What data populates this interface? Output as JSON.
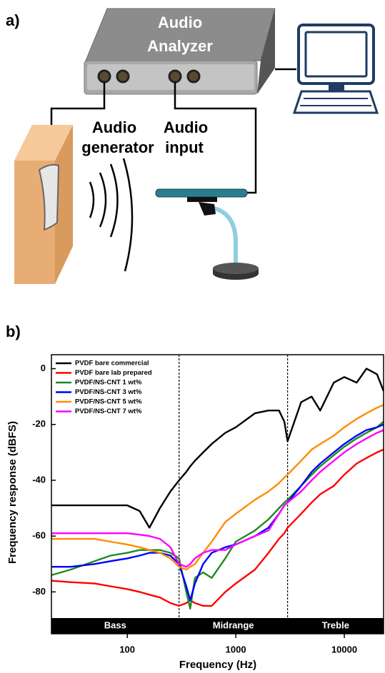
{
  "diagram": {
    "panel_label": "a)",
    "analyzer": [
      "Audio",
      "Analyzer"
    ],
    "generator": [
      "Audio",
      "generator"
    ],
    "input": [
      "Audio",
      "input"
    ]
  },
  "chart_data": {
    "type": "line",
    "panel_label": "b)",
    "x_label": "Frequency (Hz)",
    "y_label": "Frequency response (dBFS)",
    "log_x": true,
    "xlim": [
      20,
      23000
    ],
    "ylim": [
      -95,
      5
    ],
    "xticks": [
      100,
      1000,
      10000
    ],
    "yticks": [
      0,
      -20,
      -40,
      -60,
      -80
    ],
    "reference_lines": [
      300,
      3000
    ],
    "regions": [
      "Bass",
      "Midrange",
      "Treble"
    ],
    "legend": "top-left",
    "x": [
      20,
      30,
      50,
      70,
      100,
      130,
      160,
      200,
      250,
      300,
      350,
      380,
      420,
      500,
      600,
      800,
      1000,
      1500,
      2000,
      2500,
      2800,
      3000,
      4000,
      5000,
      6000,
      8000,
      10000,
      13000,
      16000,
      20000,
      23000
    ],
    "series": [
      {
        "name": "PVDF bare commercial",
        "color": "#000000",
        "values": [
          -49,
          -49,
          -49,
          -49,
          -49,
          -51,
          -57,
          -50,
          -44,
          -40,
          -37,
          -35,
          -33,
          -30,
          -27,
          -23,
          -21,
          -16,
          -15,
          -15,
          -19,
          -26,
          -12,
          -10,
          -15,
          -5,
          -3,
          -5,
          0,
          -2,
          -8
        ]
      },
      {
        "name": "PVDF bare lab prepared",
        "color": "#ff0000",
        "values": [
          -76,
          -76.5,
          -77,
          -78,
          -79,
          -80,
          -81,
          -82,
          -84,
          -85,
          -84,
          -83,
          -84,
          -85,
          -85,
          -80,
          -77,
          -72,
          -66,
          -61,
          -59,
          -57,
          -52,
          -48,
          -45,
          -42,
          -38,
          -34,
          -32,
          -30,
          -29
        ]
      },
      {
        "name": "PVDF/NS-CNT 1 wt%",
        "color": "#1e8a1e",
        "values": [
          -74,
          -72,
          -69,
          -67,
          -66,
          -65,
          -65,
          -65,
          -66,
          -68,
          -80,
          -86,
          -75,
          -73,
          -75,
          -68,
          -62,
          -58,
          -54,
          -50,
          -48,
          -47,
          -42,
          -38,
          -35,
          -31,
          -28,
          -25,
          -23,
          -21,
          -19
        ]
      },
      {
        "name": "PVDF/NS-CNT 3 wt%",
        "color": "#0000ff",
        "values": [
          -71,
          -71,
          -70,
          -69,
          -68,
          -67,
          -66,
          -66,
          -67,
          -70,
          -78,
          -83,
          -77,
          -70,
          -66,
          -64,
          -63,
          -60,
          -57,
          -52,
          -49,
          -48,
          -42,
          -37,
          -34,
          -30,
          -27,
          -24,
          -22,
          -21,
          -20
        ]
      },
      {
        "name": "PVDF/NS-CNT 5 wt%",
        "color": "#ff8c00",
        "values": [
          -61,
          -61,
          -61,
          -62,
          -63,
          -64,
          -65,
          -66,
          -68,
          -71,
          -72,
          -71,
          -70,
          -66,
          -62,
          -55,
          -52,
          -47,
          -44,
          -41,
          -39,
          -38,
          -33,
          -29,
          -27,
          -24,
          -21,
          -18,
          -16,
          -14,
          -13
        ]
      },
      {
        "name": "PVDF/NS-CNT 7 wt%",
        "color": "#ff00ff",
        "values": [
          -59,
          -59,
          -59,
          -59,
          -59,
          -59.5,
          -60,
          -61,
          -64,
          -70,
          -71,
          -70,
          -68,
          -66,
          -65,
          -65,
          -63,
          -60,
          -58,
          -52,
          -49,
          -48,
          -44,
          -40,
          -37,
          -33,
          -30,
          -27,
          -25,
          -23,
          -22
        ]
      }
    ]
  }
}
